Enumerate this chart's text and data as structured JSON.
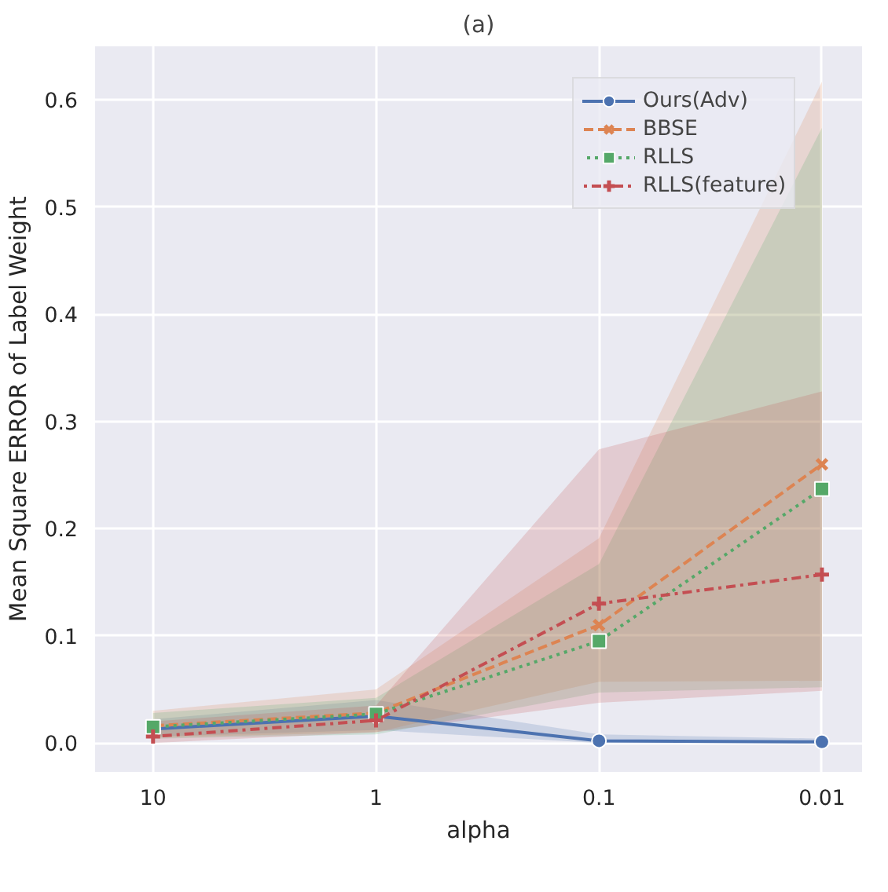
{
  "chart_data": {
    "type": "line",
    "title": "(a)",
    "xlabel": "alpha",
    "ylabel": "Mean Square ERROR of Label Weight",
    "categories": [
      "10",
      "1",
      "0.1",
      "0.01"
    ],
    "series": [
      {
        "name": "Ours(Adv)",
        "color": "#4c72b0",
        "marker": "circle",
        "line_style": "solid",
        "values": [
          0.013,
          0.025,
          0.002,
          0.001
        ],
        "lower": [
          0.006,
          0.012,
          0.0,
          0.0
        ],
        "upper": [
          0.022,
          0.04,
          0.008,
          0.004
        ]
      },
      {
        "name": "BBSE",
        "color": "#dd8452",
        "marker": "x",
        "line_style": "dashed",
        "values": [
          0.016,
          0.028,
          0.11,
          0.26
        ],
        "lower": [
          0.005,
          0.01,
          0.057,
          0.058
        ],
        "upper": [
          0.03,
          0.05,
          0.191,
          0.617
        ]
      },
      {
        "name": "RLLS",
        "color": "#55a868",
        "marker": "square",
        "line_style": "dotted",
        "values": [
          0.015,
          0.027,
          0.095,
          0.237
        ],
        "lower": [
          0.004,
          0.008,
          0.047,
          0.052
        ],
        "upper": [
          0.028,
          0.042,
          0.167,
          0.574
        ]
      },
      {
        "name": "RLLS(feature)",
        "color": "#c44e52",
        "marker": "cross",
        "line_style": "dashdot",
        "values": [
          0.006,
          0.021,
          0.13,
          0.157
        ],
        "lower": [
          0.0,
          0.01,
          0.0375,
          0.0486
        ],
        "upper": [
          0.02,
          0.035,
          0.274,
          0.328
        ]
      }
    ],
    "ylim": [
      -0.027,
      0.65
    ],
    "yticks": [
      {
        "value": 0,
        "label": "0.0"
      },
      0.1,
      0.2,
      0.3,
      0.4,
      0.5,
      0.6
    ],
    "grid": true,
    "legend": "top right"
  }
}
